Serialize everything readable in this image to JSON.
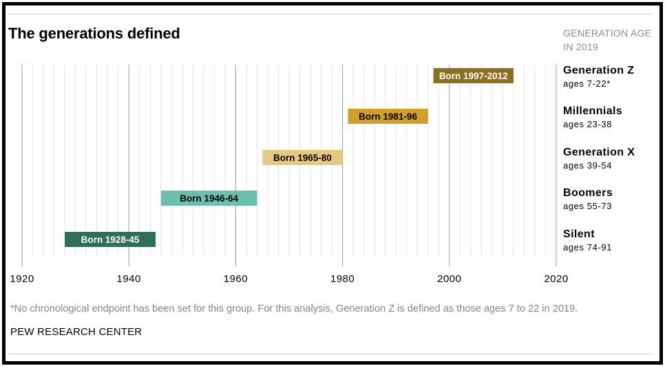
{
  "title": "The generations defined",
  "age_heading": "GENERATION AGE IN 2019",
  "footnote": "*No chronological endpoint has been set for this group. For this analysis, Generation Z is defined as those ages 7 to 22 in 2019.",
  "source": "PEW RESEARCH CENTER",
  "chart_data": {
    "type": "bar",
    "orientation": "horizontal-range",
    "xlim": [
      1920,
      2020
    ],
    "xticks": [
      1920,
      1940,
      1960,
      1980,
      2000,
      2020
    ],
    "grid": true,
    "series": [
      {
        "name": "Generation Z",
        "ages": "ages 7-22*",
        "label": "Born 1997-2012",
        "start": 1997,
        "end": 2012,
        "color": "#8c7020",
        "text_color": "#ffffff"
      },
      {
        "name": "Millennials",
        "ages": "ages 23-38",
        "label": "Born 1981-96",
        "start": 1981,
        "end": 1996,
        "color": "#d1a02a",
        "text_color": "#000000"
      },
      {
        "name": "Generation X",
        "ages": "ages 39-54",
        "label": "Born 1965-80",
        "start": 1965,
        "end": 1980,
        "color": "#e8c880",
        "text_color": "#000000"
      },
      {
        "name": "Boomers",
        "ages": "ages 55-73",
        "label": "Born 1946-64",
        "start": 1946,
        "end": 1964,
        "color": "#6cbfad",
        "text_color": "#000000"
      },
      {
        "name": "Silent",
        "ages": "ages 74-91",
        "label": "Born 1928-45",
        "start": 1928,
        "end": 1945,
        "color": "#2e6f5c",
        "text_color": "#ffffff"
      }
    ]
  }
}
